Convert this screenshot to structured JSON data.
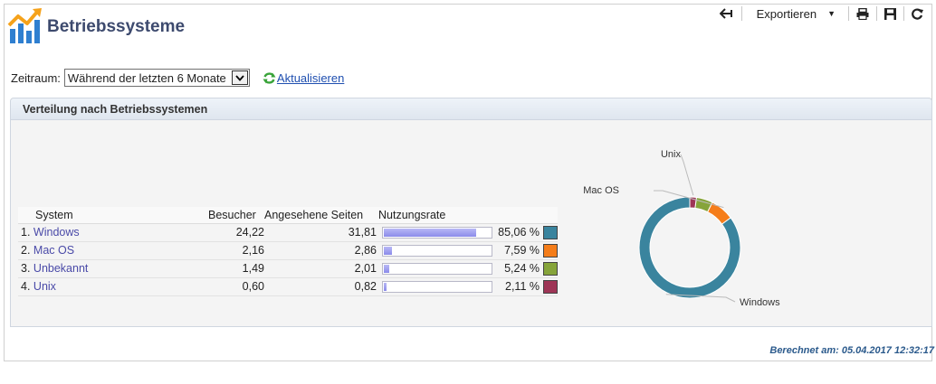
{
  "header": {
    "title": "Betriebssysteme",
    "logo_icon": "bar-chart-trend-icon"
  },
  "toolbar": {
    "back_icon": "back-arrow-icon",
    "export_label": "Exportieren",
    "print_icon": "print-icon",
    "save_icon": "save-icon",
    "reload_icon": "reload-icon"
  },
  "filter": {
    "period_label": "Zeitraum:",
    "period_value": "Während der letzten 6 Monate",
    "refresh_label": "Aktualisieren"
  },
  "panel": {
    "title": "Verteilung nach Betriebssystemen"
  },
  "table": {
    "headers": {
      "system": "System",
      "visitors": "Besucher",
      "pages": "Angesehene Seiten",
      "rate": "Nutzungsrate"
    },
    "rows": [
      {
        "rank": "1.",
        "name": "Windows",
        "visitors": "24,22",
        "pages": "31,81",
        "rate_label": "85,06 %",
        "rate": 85.06,
        "color": "#3a849e"
      },
      {
        "rank": "2.",
        "name": "Mac OS",
        "visitors": "2,16",
        "pages": "2,86",
        "rate_label": "7,59 %",
        "rate": 7.59,
        "color": "#f57d1a"
      },
      {
        "rank": "3.",
        "name": "Unbekannt",
        "visitors": "1,49",
        "pages": "2,01",
        "rate_label": "5,24 %",
        "rate": 5.24,
        "color": "#86a43a"
      },
      {
        "rank": "4.",
        "name": "Unix",
        "visitors": "0,60",
        "pages": "0,82",
        "rate_label": "2,11 %",
        "rate": 2.11,
        "color": "#9e3556"
      }
    ]
  },
  "chart_data": {
    "type": "pie",
    "categories": [
      "Windows",
      "Mac OS",
      "Unbekannt",
      "Unix"
    ],
    "values": [
      85.06,
      7.59,
      5.24,
      2.11
    ],
    "colors": [
      "#3a849e",
      "#f57d1a",
      "#86a43a",
      "#9e3556"
    ],
    "labels_shown": [
      "Windows",
      "Mac OS",
      "Unix"
    ]
  },
  "footer": {
    "computed": "Berechnet am: 05.04.2017 12:32:17"
  }
}
